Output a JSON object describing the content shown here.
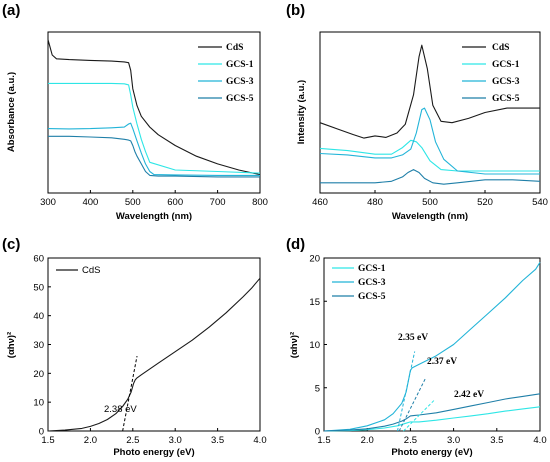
{
  "colors": {
    "CdS": "#1a1a1a",
    "GCS-1": "#2ee6e6",
    "GCS-3": "#22b4d8",
    "GCS-5": "#1f7fa8"
  },
  "chart_data": [
    {
      "panel": "(a)",
      "type": "line",
      "xlabel": "Wavelength (nm)",
      "ylabel": "Absorbance (a.u.)",
      "xlim": [
        300,
        800
      ],
      "xticks": [
        "300",
        "400",
        "500",
        "600",
        "700",
        "800"
      ],
      "yticks_visible": false,
      "legend": "top-right",
      "series": [
        {
          "name": "CdS",
          "x": [
            300,
            304,
            310,
            320,
            350,
            400,
            450,
            480,
            490,
            495,
            500,
            510,
            520,
            540,
            560,
            600,
            650,
            700,
            750,
            800
          ],
          "y": [
            1.0,
            0.96,
            0.9,
            0.875,
            0.87,
            0.865,
            0.86,
            0.855,
            0.85,
            0.8,
            0.68,
            0.57,
            0.5,
            0.43,
            0.38,
            0.31,
            0.24,
            0.19,
            0.15,
            0.12
          ]
        },
        {
          "name": "GCS-1",
          "x": [
            300,
            350,
            400,
            450,
            480,
            490,
            495,
            500,
            510,
            520,
            530,
            540,
            600,
            700,
            800
          ],
          "y": [
            0.715,
            0.715,
            0.715,
            0.715,
            0.712,
            0.705,
            0.64,
            0.56,
            0.45,
            0.35,
            0.27,
            0.2,
            0.15,
            0.14,
            0.13
          ]
        },
        {
          "name": "GCS-3",
          "x": [
            300,
            350,
            400,
            450,
            480,
            490,
            495,
            500,
            510,
            520,
            530,
            540,
            550,
            600,
            700,
            800
          ],
          "y": [
            0.42,
            0.418,
            0.42,
            0.425,
            0.43,
            0.45,
            0.455,
            0.42,
            0.34,
            0.26,
            0.19,
            0.14,
            0.12,
            0.118,
            0.115,
            0.115
          ]
        },
        {
          "name": "GCS-5",
          "x": [
            300,
            350,
            400,
            450,
            480,
            490,
            495,
            500,
            505,
            510,
            520,
            530,
            540,
            560,
            600,
            700,
            800
          ],
          "y": [
            0.37,
            0.37,
            0.365,
            0.36,
            0.35,
            0.345,
            0.34,
            0.31,
            0.27,
            0.24,
            0.19,
            0.14,
            0.115,
            0.11,
            0.11,
            0.105,
            0.105
          ]
        }
      ]
    },
    {
      "panel": "(b)",
      "type": "line",
      "xlabel": "Wavelength (nm)",
      "ylabel": "Intensity (a.u.)",
      "xlim": [
        460,
        540
      ],
      "xticks": [
        "460",
        "480",
        "500",
        "520",
        "540"
      ],
      "yticks_visible": false,
      "legend": "top-right",
      "series": [
        {
          "name": "CdS",
          "x": [
            460,
            466,
            472,
            476,
            480,
            484,
            488,
            491,
            494,
            496,
            497,
            499,
            501,
            504,
            508,
            514,
            520,
            528,
            534,
            540
          ],
          "y": [
            0.43,
            0.39,
            0.35,
            0.325,
            0.34,
            0.33,
            0.36,
            0.42,
            0.62,
            0.88,
            0.96,
            0.8,
            0.55,
            0.44,
            0.43,
            0.46,
            0.5,
            0.53,
            0.53,
            0.53
          ]
        },
        {
          "name": "GCS-1",
          "x": [
            460,
            470,
            480,
            486,
            490,
            493,
            495,
            497,
            500,
            504,
            510,
            520,
            530,
            540
          ],
          "y": [
            0.255,
            0.24,
            0.215,
            0.215,
            0.26,
            0.31,
            0.3,
            0.26,
            0.17,
            0.11,
            0.1,
            0.1,
            0.1,
            0.1
          ]
        },
        {
          "name": "GCS-3",
          "x": [
            460,
            470,
            480,
            486,
            490,
            493,
            495,
            497,
            498,
            500,
            502,
            505,
            510,
            520,
            530,
            540
          ],
          "y": [
            0.22,
            0.21,
            0.19,
            0.19,
            0.21,
            0.25,
            0.36,
            0.52,
            0.53,
            0.45,
            0.3,
            0.18,
            0.1,
            0.08,
            0.08,
            0.08
          ]
        },
        {
          "name": "GCS-5",
          "x": [
            460,
            470,
            480,
            486,
            490,
            492,
            494,
            496,
            498,
            501,
            505,
            510,
            520,
            530,
            540
          ],
          "y": [
            0.02,
            0.02,
            0.02,
            0.03,
            0.06,
            0.09,
            0.11,
            0.09,
            0.05,
            0.02,
            0.01,
            0.02,
            0.04,
            0.04,
            0.03
          ]
        }
      ]
    },
    {
      "panel": "(c)",
      "type": "line",
      "xlabel": "Photo energy (eV)",
      "ylabel": "(αhν)²",
      "xlim": [
        1.5,
        4.0
      ],
      "ylim": [
        0,
        60
      ],
      "xticks": [
        "1.5",
        "2.0",
        "2.5",
        "3.0",
        "3.5",
        "4.0"
      ],
      "yticks": [
        "0",
        "10",
        "20",
        "30",
        "40",
        "50",
        "60"
      ],
      "legend": "top-left",
      "annotation": "2.38 eV",
      "tangent": {
        "x": [
          2.38,
          2.55
        ],
        "y": [
          0,
          26
        ]
      },
      "series": [
        {
          "name": "CdS",
          "x": [
            1.5,
            1.7,
            1.9,
            2.0,
            2.1,
            2.2,
            2.3,
            2.38,
            2.44,
            2.48,
            2.51,
            2.53,
            2.55,
            2.6,
            2.8,
            3.0,
            3.2,
            3.4,
            3.6,
            3.8,
            3.9,
            4.0
          ],
          "y": [
            0.0,
            0.3,
            0.9,
            1.6,
            2.6,
            4.0,
            6.0,
            8.5,
            11.0,
            13.5,
            16.5,
            17.8,
            18.4,
            19.5,
            23.5,
            27.5,
            31.5,
            36.0,
            41.0,
            46.5,
            49.5,
            53.0
          ]
        }
      ]
    },
    {
      "panel": "(d)",
      "type": "line",
      "xlabel": "Photo energy (eV)",
      "ylabel": "(αhν)²",
      "xlim": [
        1.5,
        4.0
      ],
      "ylim": [
        0,
        20
      ],
      "xticks": [
        "1.5",
        "2.0",
        "2.5",
        "3.0",
        "3.5",
        "4.0"
      ],
      "yticks": [
        "0",
        "5",
        "10",
        "15",
        "20"
      ],
      "legend": "top-left",
      "annotations": [
        "2.35 eV",
        "2.37 eV",
        "2.42 eV"
      ],
      "tangents": [
        {
          "series": "GCS-3",
          "x": [
            2.35,
            2.55
          ],
          "y": [
            0,
            9.2
          ]
        },
        {
          "series": "GCS-5",
          "x": [
            2.37,
            2.68
          ],
          "y": [
            0,
            6.2
          ]
        },
        {
          "series": "GCS-1",
          "x": [
            2.42,
            2.78
          ],
          "y": [
            0,
            3.6
          ]
        }
      ],
      "series": [
        {
          "name": "GCS-1",
          "x": [
            1.5,
            1.8,
            2.0,
            2.2,
            2.35,
            2.45,
            2.5,
            2.55,
            2.6,
            2.8,
            3.0,
            3.2,
            3.4,
            3.6,
            3.8,
            4.0
          ],
          "y": [
            0.0,
            0.05,
            0.15,
            0.35,
            0.6,
            0.9,
            1.05,
            1.05,
            1.05,
            1.25,
            1.5,
            1.75,
            2.0,
            2.3,
            2.55,
            2.8
          ]
        },
        {
          "name": "GCS-3",
          "x": [
            1.5,
            1.8,
            2.0,
            2.2,
            2.3,
            2.4,
            2.45,
            2.48,
            2.5,
            2.52,
            2.6,
            2.8,
            3.0,
            3.2,
            3.4,
            3.6,
            3.8,
            3.95,
            4.0
          ],
          "y": [
            0.0,
            0.2,
            0.6,
            1.3,
            2.0,
            3.2,
            4.5,
            6.0,
            7.0,
            7.3,
            7.7,
            8.7,
            10.0,
            11.8,
            13.6,
            15.4,
            17.4,
            18.7,
            19.5
          ]
        },
        {
          "name": "GCS-5",
          "x": [
            1.5,
            1.8,
            2.0,
            2.2,
            2.3,
            2.4,
            2.45,
            2.5,
            2.55,
            2.6,
            2.8,
            3.0,
            3.2,
            3.4,
            3.6,
            3.8,
            4.0
          ],
          "y": [
            0.0,
            0.1,
            0.25,
            0.55,
            0.8,
            1.15,
            1.4,
            1.75,
            1.8,
            1.85,
            2.1,
            2.5,
            2.9,
            3.3,
            3.7,
            4.0,
            4.3
          ]
        }
      ]
    }
  ]
}
